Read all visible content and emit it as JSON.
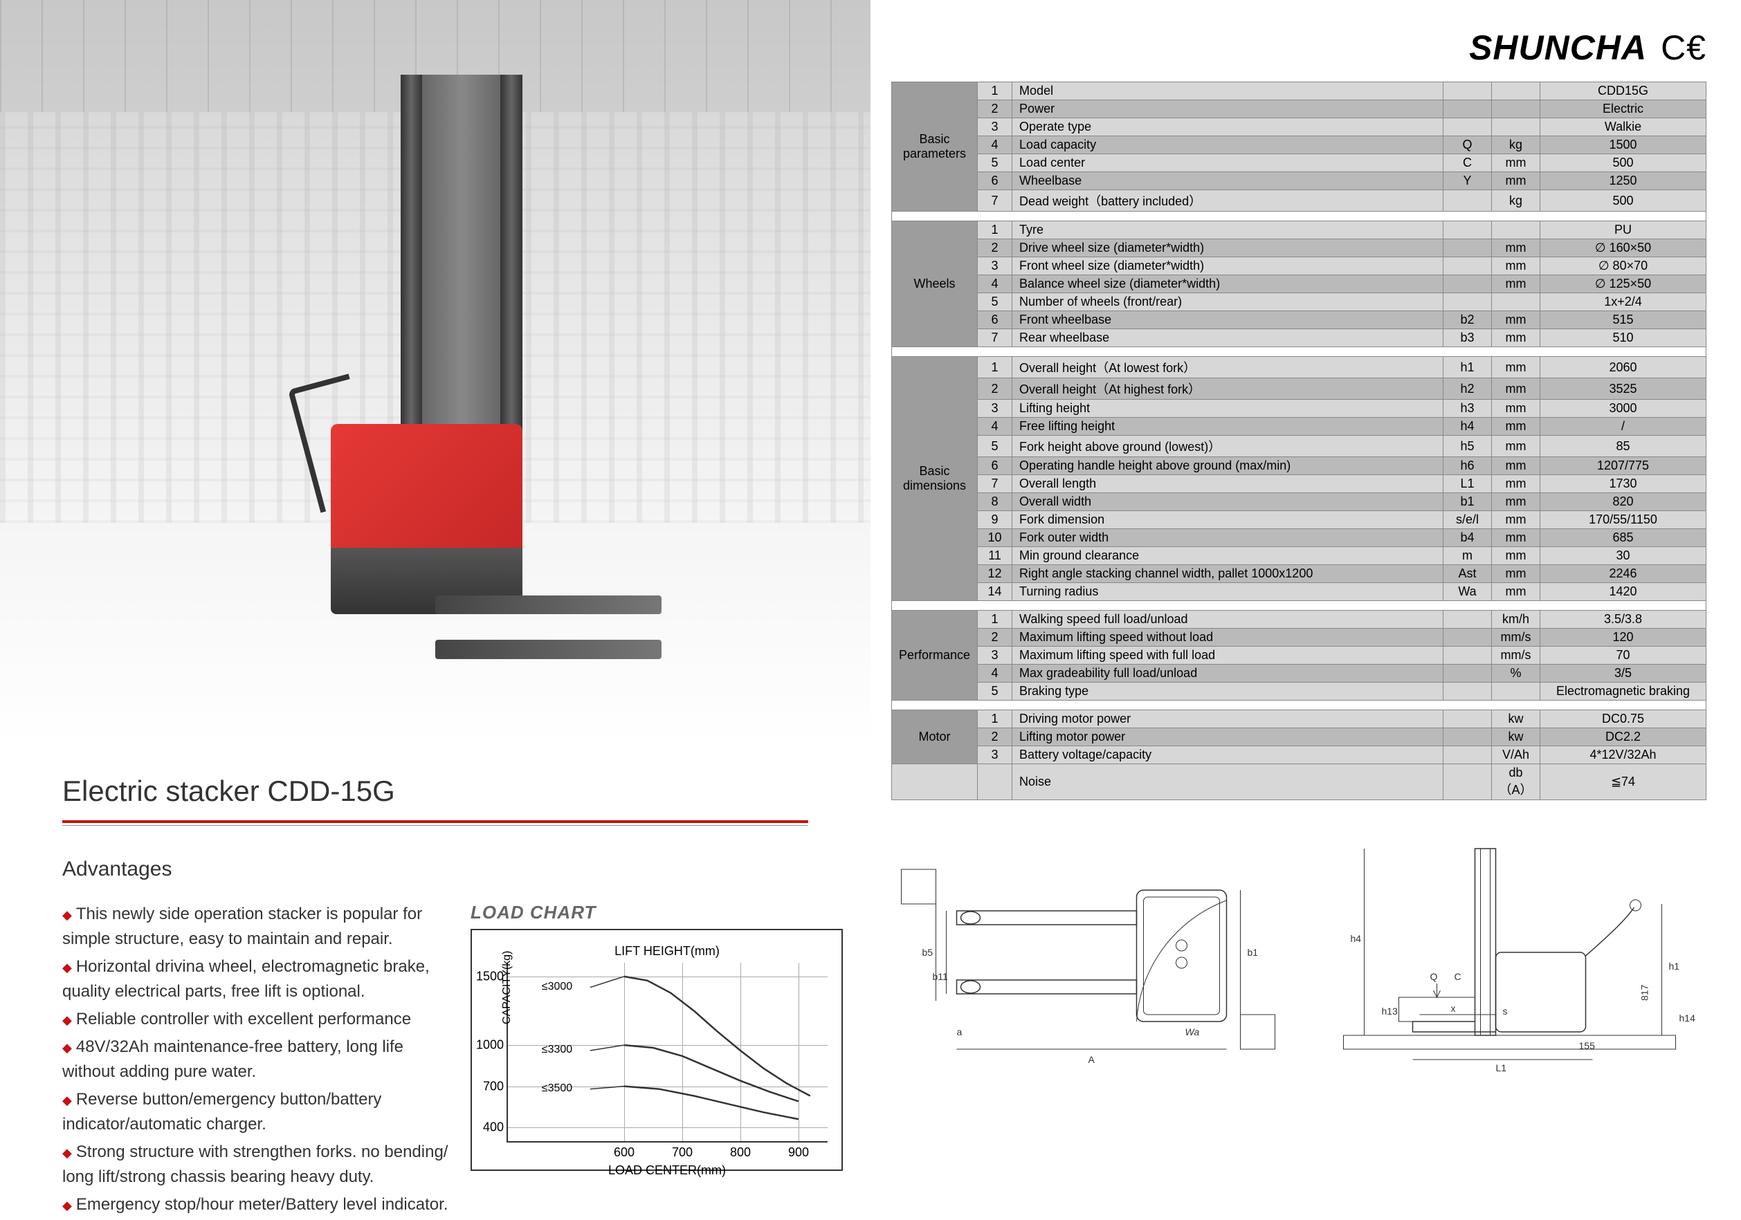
{
  "brand": "SHUNCHA",
  "ce_mark": "C€",
  "title": "Electric stacker CDD-15G",
  "advantages_heading": "Advantages",
  "advantages": [
    "This newly side operation stacker is popular for simple structure, easy to maintain and repair.",
    "Horizontal drivina wheel, electromagnetic brake, quality electrical parts, free lift is optional.",
    "Reliable controller with excellent performance",
    "48V/32Ah maintenance-free battery, long life without adding pure water.",
    "Reverse button/emergency button/battery indicator/automatic charger.",
    "Strong structure with strengthen forks. no bending/ long lift/strong chassis bearing heavy duty.",
    "Emergency stop/hour meter/Battery level indicator."
  ],
  "load_chart": {
    "title": "LOAD CHART",
    "lift_height_label": "LIFT HEIGHT(mm)",
    "ylabel": "CAPACITY(kg)",
    "xlabel": "LOAD CENTER(mm)",
    "y_ticks": [
      400,
      700,
      1000,
      1500
    ],
    "x_ticks": [
      600,
      700,
      800,
      900
    ],
    "y_range": [
      300,
      1600
    ],
    "x_range": [
      400,
      950
    ],
    "curves": [
      {
        "label": "≤3000",
        "label_xy": [
          470,
          1420
        ],
        "points": [
          [
            600,
            1500
          ],
          [
            640,
            1470
          ],
          [
            680,
            1380
          ],
          [
            720,
            1250
          ],
          [
            760,
            1100
          ],
          [
            800,
            960
          ],
          [
            840,
            830
          ],
          [
            880,
            720
          ],
          [
            920,
            630
          ]
        ]
      },
      {
        "label": "≤3300",
        "label_xy": [
          470,
          960
        ],
        "points": [
          [
            600,
            1000
          ],
          [
            650,
            980
          ],
          [
            700,
            920
          ],
          [
            750,
            830
          ],
          [
            800,
            740
          ],
          [
            850,
            660
          ],
          [
            900,
            590
          ]
        ]
      },
      {
        "label": "≤3500",
        "label_xy": [
          470,
          680
        ],
        "points": [
          [
            600,
            700
          ],
          [
            660,
            680
          ],
          [
            720,
            630
          ],
          [
            780,
            570
          ],
          [
            840,
            510
          ],
          [
            900,
            460
          ]
        ]
      }
    ]
  },
  "spec_sections": [
    {
      "group": "Basic parameters",
      "rows": [
        {
          "n": "1",
          "p": "Model",
          "s": "",
          "u": "",
          "v": "CDD15G"
        },
        {
          "n": "2",
          "p": "Power",
          "s": "",
          "u": "",
          "v": "Electric"
        },
        {
          "n": "3",
          "p": "Operate type",
          "s": "",
          "u": "",
          "v": "Walkie"
        },
        {
          "n": "4",
          "p": "Load capacity",
          "s": "Q",
          "u": "kg",
          "v": "1500"
        },
        {
          "n": "5",
          "p": "Load center",
          "s": "C",
          "u": "mm",
          "v": "500"
        },
        {
          "n": "6",
          "p": "Wheelbase",
          "s": "Y",
          "u": "mm",
          "v": "1250"
        },
        {
          "n": "7",
          "p": "Dead weight（battery included）",
          "s": "",
          "u": "kg",
          "v": "500"
        }
      ]
    },
    {
      "group": "Wheels",
      "rows": [
        {
          "n": "1",
          "p": "Tyre",
          "s": "",
          "u": "",
          "v": "PU"
        },
        {
          "n": "2",
          "p": "Drive wheel size (diameter*width)",
          "s": "",
          "u": "mm",
          "v": "∅ 160×50"
        },
        {
          "n": "3",
          "p": "Front wheel size (diameter*width)",
          "s": "",
          "u": "mm",
          "v": "∅ 80×70"
        },
        {
          "n": "4",
          "p": "Balance wheel size (diameter*width)",
          "s": "",
          "u": "mm",
          "v": "∅ 125×50"
        },
        {
          "n": "5",
          "p": "Number of wheels (front/rear)",
          "s": "",
          "u": "",
          "v": "1x+2/4"
        },
        {
          "n": "6",
          "p": "Front wheelbase",
          "s": "b2",
          "u": "mm",
          "v": "515"
        },
        {
          "n": "7",
          "p": "Rear wheelbase",
          "s": "b3",
          "u": "mm",
          "v": "510"
        }
      ]
    },
    {
      "group": "Basic dimensions",
      "rows": [
        {
          "n": "1",
          "p": "Overall height（At lowest fork）",
          "s": "h1",
          "u": "mm",
          "v": "2060"
        },
        {
          "n": "2",
          "p": "Overall height（At highest fork）",
          "s": "h2",
          "u": "mm",
          "v": "3525"
        },
        {
          "n": "3",
          "p": "Lifting height",
          "s": "h3",
          "u": "mm",
          "v": "3000"
        },
        {
          "n": "4",
          "p": "Free lifting height",
          "s": "h4",
          "u": "mm",
          "v": "/"
        },
        {
          "n": "5",
          "p": "Fork height above ground (lowest)）",
          "s": "h5",
          "u": "mm",
          "v": "85"
        },
        {
          "n": "6",
          "p": "Operating handle height above ground (max/min)",
          "s": "h6",
          "u": "mm",
          "v": "1207/775"
        },
        {
          "n": "7",
          "p": "Overall length",
          "s": "L1",
          "u": "mm",
          "v": "1730"
        },
        {
          "n": "8",
          "p": "Overall width",
          "s": "b1",
          "u": "mm",
          "v": "820"
        },
        {
          "n": "9",
          "p": "Fork dimension",
          "s": "s/e/l",
          "u": "mm",
          "v": "170/55/1150"
        },
        {
          "n": "10",
          "p": "Fork outer width",
          "s": "b4",
          "u": "mm",
          "v": "685"
        },
        {
          "n": "11",
          "p": "Min ground clearance",
          "s": "m",
          "u": "mm",
          "v": "30"
        },
        {
          "n": "12",
          "p": "Right angle stacking channel width, pallet 1000x1200",
          "s": "Ast",
          "u": "mm",
          "v": "2246"
        },
        {
          "n": "14",
          "p": "Turning radius",
          "s": "Wa",
          "u": "mm",
          "v": "1420"
        }
      ]
    },
    {
      "group": "Performance",
      "rows": [
        {
          "n": "1",
          "p": "Walking speed full load/unload",
          "s": "",
          "u": "km/h",
          "v": "3.5/3.8"
        },
        {
          "n": "2",
          "p": "Maximum lifting speed without load",
          "s": "",
          "u": "mm/s",
          "v": "120"
        },
        {
          "n": "3",
          "p": "Maximum lifting speed with full load",
          "s": "",
          "u": "mm/s",
          "v": "70"
        },
        {
          "n": "4",
          "p": "Max gradeability full load/unload",
          "s": "",
          "u": "%",
          "v": "3/5"
        },
        {
          "n": "5",
          "p": "Braking type",
          "s": "",
          "u": "",
          "v": "Electromagnetic braking"
        }
      ]
    },
    {
      "group": "Motor",
      "rows": [
        {
          "n": "1",
          "p": "Driving motor power",
          "s": "",
          "u": "kw",
          "v": "DC0.75"
        },
        {
          "n": "2",
          "p": "Lifting motor power",
          "s": "",
          "u": "kw",
          "v": "DC2.2"
        },
        {
          "n": "3",
          "p": "Battery voltage/capacity",
          "s": "",
          "u": "V/Ah",
          "v": "4*12V/32Ah"
        }
      ]
    }
  ],
  "noise_row": {
    "p": "Noise",
    "u": "db（A）",
    "v": "≦74"
  },
  "diagram_labels": {
    "top": {
      "b5": "b5",
      "b11": "b11",
      "b1": "b1",
      "a": "a",
      "A": "A",
      "Wa": "Wa"
    },
    "side": {
      "h4": "h4",
      "h1": "h1",
      "h13": "h13",
      "Q": "Q",
      "C": "C",
      "x": "x",
      "s": "s",
      "L1": "L1",
      "155": "155",
      "817": "817",
      "h14": "h14"
    }
  }
}
